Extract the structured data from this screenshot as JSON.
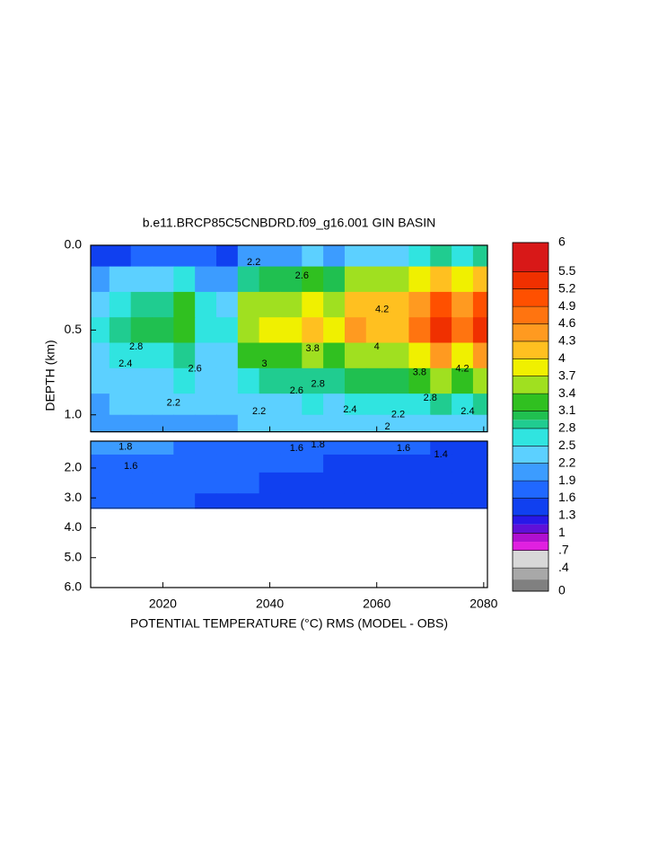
{
  "chart_data": {
    "type": "contour",
    "title": "b.e11.BRCP85C5CNBDRD.f09_g16.001 GIN BASIN",
    "xlabel": "POTENTIAL TEMPERATURE (°C) RMS (MODEL - OBS)",
    "ylabel": "DEPTH (km)",
    "xlim": [
      2006.5,
      2080.7
    ],
    "xticks": [
      2020,
      2040,
      2060,
      2080
    ],
    "x": [
      2008,
      2012,
      2016,
      2020,
      2024,
      2028,
      2032,
      2036,
      2040,
      2044,
      2048,
      2052,
      2056,
      2060,
      2064,
      2068,
      2072,
      2076,
      2080
    ],
    "panels": [
      {
        "ylim": [
          0,
          1.1
        ],
        "yticks": [
          {
            "value": 0,
            "label": "0.0"
          },
          {
            "value": 0.5,
            "label": "0.5"
          },
          {
            "value": 1,
            "label": "1.0"
          }
        ],
        "depths": [
          0.05,
          0.2,
          0.35,
          0.5,
          0.65,
          0.8,
          0.95,
          1.05
        ],
        "values": [
          [
            1.4,
            1.5,
            1.6,
            1.7,
            1.8,
            1.6,
            1.5,
            2.0,
            2.1,
            2.1,
            2.2,
            2.1,
            2.4,
            2.3,
            2.3,
            2.5,
            2.9,
            2.5,
            2.9
          ],
          [
            2.0,
            2.2,
            2.4,
            2.4,
            2.6,
            2.1,
            2.0,
            2.9,
            3.0,
            3.0,
            3.2,
            3.0,
            3.4,
            3.4,
            3.4,
            3.7,
            4.2,
            3.7,
            4.2
          ],
          [
            2.4,
            2.7,
            2.9,
            2.9,
            3.1,
            2.5,
            2.4,
            3.4,
            3.6,
            3.6,
            3.8,
            3.6,
            4.1,
            4.0,
            4.0,
            4.4,
            4.9,
            4.4,
            4.9
          ],
          [
            2.5,
            2.8,
            3.0,
            3.0,
            3.3,
            2.6,
            2.5,
            3.6,
            3.8,
            3.8,
            4.0,
            3.8,
            4.3,
            4.2,
            4.2,
            4.6,
            5.2,
            4.6,
            5.2
          ],
          [
            2.3,
            2.5,
            2.6,
            2.7,
            2.8,
            2.4,
            2.4,
            3.1,
            3.3,
            3.3,
            3.4,
            3.3,
            3.6,
            3.6,
            3.6,
            3.9,
            4.3,
            3.9,
            4.3
          ],
          [
            2.2,
            2.3,
            2.4,
            2.4,
            2.5,
            2.3,
            2.3,
            2.7,
            2.8,
            2.8,
            2.9,
            2.8,
            3.0,
            3.0,
            3.0,
            3.2,
            3.5,
            3.2,
            3.5
          ],
          [
            2.1,
            2.2,
            2.2,
            2.2,
            2.3,
            2.2,
            2.2,
            2.4,
            2.4,
            2.4,
            2.5,
            2.4,
            2.6,
            2.6,
            2.6,
            2.7,
            2.8,
            2.7,
            2.8
          ],
          [
            2.0,
            2.1,
            2.1,
            2.1,
            2.1,
            2.1,
            2.1,
            2.2,
            2.2,
            2.2,
            2.2,
            2.2,
            2.3,
            2.3,
            2.3,
            2.4,
            2.4,
            2.4,
            2.4
          ]
        ]
      },
      {
        "ylim": [
          1.1,
          6
        ],
        "yticks": [
          {
            "value": 2,
            "label": "2.0"
          },
          {
            "value": 3,
            "label": "3.0"
          },
          {
            "value": 4,
            "label": "4.0"
          },
          {
            "value": 5,
            "label": "5.0"
          },
          {
            "value": 6,
            "label": "6.0"
          }
        ],
        "depths": [
          1.3,
          1.8,
          2.5,
          3.2
        ],
        "bottom_depth": 3.35,
        "values": [
          [
            1.9,
            1.9,
            1.9,
            1.9,
            1.8,
            1.8,
            1.8,
            1.8,
            1.8,
            1.7,
            1.7,
            1.7,
            1.6,
            1.6,
            1.6,
            1.6,
            1.5,
            1.5,
            1.5
          ],
          [
            1.8,
            1.8,
            1.7,
            1.7,
            1.7,
            1.7,
            1.7,
            1.6,
            1.6,
            1.6,
            1.6,
            1.5,
            1.5,
            1.5,
            1.5,
            1.5,
            1.4,
            1.4,
            1.4
          ],
          [
            1.7,
            1.7,
            1.7,
            1.6,
            1.6,
            1.6,
            1.6,
            1.6,
            1.5,
            1.5,
            1.5,
            1.5,
            1.5,
            1.4,
            1.4,
            1.4,
            1.4,
            1.4,
            1.4
          ],
          [
            1.6,
            1.6,
            1.6,
            1.6,
            1.6,
            1.5,
            1.5,
            1.5,
            1.5,
            1.5,
            1.5,
            1.4,
            1.4,
            1.4,
            1.4,
            1.4,
            1.4,
            1.4,
            1.4
          ]
        ]
      }
    ],
    "colorbar": {
      "clim": [
        0,
        6
      ],
      "ticks": [
        6,
        5.5,
        5.2,
        4.9,
        4.6,
        4.3,
        4,
        3.7,
        3.4,
        3.1,
        2.8,
        2.5,
        2.2,
        1.9,
        1.6,
        1.3,
        1,
        {
          "value": 0.7,
          "label": ".7"
        },
        {
          "value": 0.4,
          "label": ".4"
        },
        0
      ],
      "bands": [
        {
          "from": 0,
          "color": "#808080"
        },
        {
          "from": 0.2,
          "color": "#a8a8a8"
        },
        {
          "from": 0.4,
          "color": "#d8d8d8"
        },
        {
          "from": 0.7,
          "color": "#e020e0"
        },
        {
          "from": 0.85,
          "color": "#b010d0"
        },
        {
          "from": 1,
          "color": "#6010d8"
        },
        {
          "from": 1.15,
          "color": "#2818e8"
        },
        {
          "from": 1.3,
          "color": "#1040f0"
        },
        {
          "from": 1.6,
          "color": "#2068ff"
        },
        {
          "from": 1.9,
          "color": "#3c9cff"
        },
        {
          "from": 2.2,
          "color": "#5cd0ff"
        },
        {
          "from": 2.5,
          "color": "#30e4e0"
        },
        {
          "from": 2.8,
          "color": "#20cc90"
        },
        {
          "from": 2.95,
          "color": "#20c050"
        },
        {
          "from": 3.1,
          "color": "#30c020"
        },
        {
          "from": 3.4,
          "color": "#a0e020"
        },
        {
          "from": 3.7,
          "color": "#f0f000"
        },
        {
          "from": 4,
          "color": "#ffc020"
        },
        {
          "from": 4.3,
          "color": "#ff9a20"
        },
        {
          "from": 4.6,
          "color": "#ff7410"
        },
        {
          "from": 4.9,
          "color": "#ff5000"
        },
        {
          "from": 5.2,
          "color": "#f03000"
        },
        {
          "from": 5.5,
          "color": "#d81818"
        }
      ]
    },
    "contour_labels": [
      {
        "level": 2.2,
        "x": 2022,
        "depth": 0.93
      },
      {
        "level": 2.4,
        "x": 2013,
        "depth": 0.7
      },
      {
        "level": 2.6,
        "x": 2026,
        "depth": 0.73
      },
      {
        "level": 2.8,
        "x": 2015,
        "depth": 0.6
      },
      {
        "level": 3,
        "x": 2039,
        "depth": 0.7
      },
      {
        "level": 2.6,
        "x": 2045,
        "depth": 0.86
      },
      {
        "level": 2.8,
        "x": 2049,
        "depth": 0.82
      },
      {
        "level": 3.8,
        "x": 2048,
        "depth": 0.61
      },
      {
        "level": 2.2,
        "x": 2038,
        "depth": 0.98
      },
      {
        "level": 2.4,
        "x": 2055,
        "depth": 0.97
      },
      {
        "level": 2,
        "x": 2062,
        "depth": 1.07
      },
      {
        "level": 2.2,
        "x": 2064,
        "depth": 1.0
      },
      {
        "level": 4.2,
        "x": 2061,
        "depth": 0.38
      },
      {
        "level": 4,
        "x": 2060,
        "depth": 0.6
      },
      {
        "level": 3.8,
        "x": 2068,
        "depth": 0.75
      },
      {
        "level": 4.2,
        "x": 2076,
        "depth": 0.73
      },
      {
        "level": 2.8,
        "x": 2070,
        "depth": 0.9
      },
      {
        "level": 2.4,
        "x": 2077,
        "depth": 0.98
      },
      {
        "level": 2.6,
        "x": 2046,
        "depth": 0.18
      },
      {
        "level": 2.2,
        "x": 2037,
        "depth": 0.1
      },
      {
        "level": 1.8,
        "x": 2013,
        "depth": 1.3
      },
      {
        "level": 1.6,
        "x": 2014,
        "depth": 1.95
      },
      {
        "level": 1.6,
        "x": 2045,
        "depth": 1.35
      },
      {
        "level": 1.6,
        "x": 2065,
        "depth": 1.35
      },
      {
        "level": 1.4,
        "x": 2072,
        "depth": 1.55
      },
      {
        "level": 1.8,
        "x": 2049,
        "depth": 1.22
      }
    ]
  }
}
